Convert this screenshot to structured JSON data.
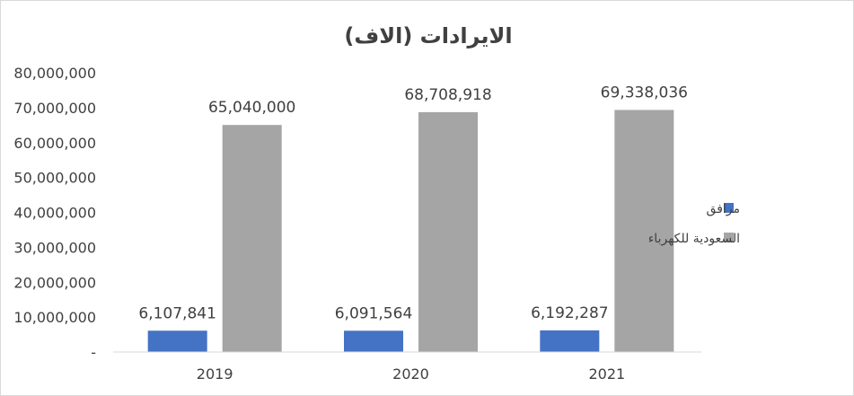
{
  "chart_data": {
    "type": "bar",
    "title": "الايرادات  (الاف)",
    "categories": [
      "2019",
      "2020",
      "2021"
    ],
    "series": [
      {
        "name": "مرافق",
        "values": [
          6107841,
          6091564,
          6192287
        ],
        "labels": [
          "6,107,841",
          "6,091,564",
          "6,192,287"
        ]
      },
      {
        "name": "السعودية للكهرباء",
        "values": [
          65040000,
          68708918,
          69338036
        ],
        "labels": [
          "65,040,000",
          "68,708,918",
          "69,338,036"
        ]
      }
    ],
    "y_ticks": [
      "-",
      "10,000,000",
      "20,000,000",
      "30,000,000",
      "40,000,000",
      "50,000,000",
      "60,000,000",
      "70,000,000",
      "80,000,000"
    ],
    "ylim": [
      0,
      80000000
    ],
    "grid": false,
    "legend_position": "right"
  },
  "colors": {
    "series": [
      "#4472c4",
      "#a5a5a5"
    ],
    "text": "#404040",
    "axis": "#d9d9d9"
  }
}
